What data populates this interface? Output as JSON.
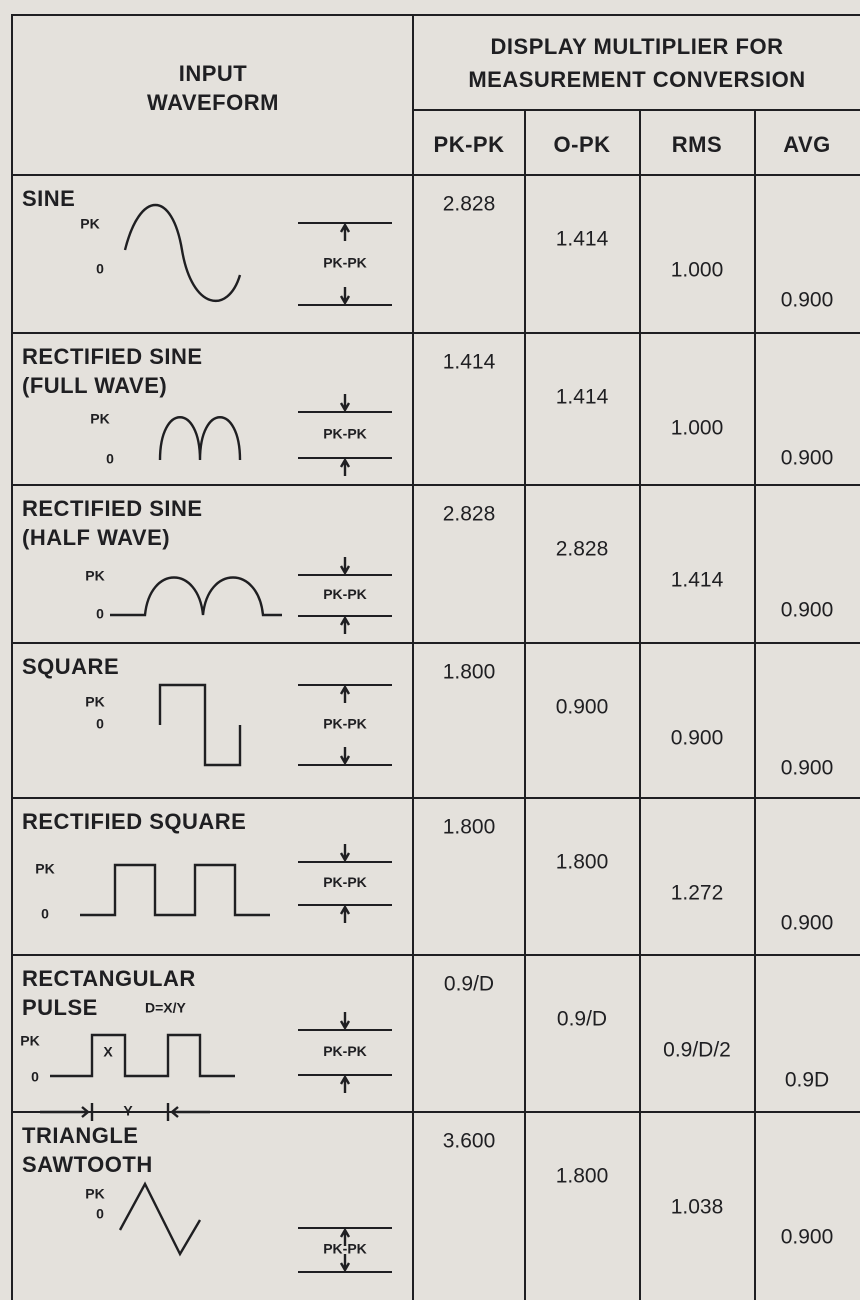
{
  "header": {
    "input_waveform": [
      "INPUT",
      "WAVEFORM"
    ],
    "multiplier": [
      "DISPLAY MULTIPLIER FOR",
      "MEASUREMENT CONVERSION"
    ],
    "columns": [
      "PK-PK",
      "O-PK",
      "RMS",
      "AVG"
    ]
  },
  "rows": [
    {
      "name": [
        "SINE"
      ],
      "pk": "PK",
      "zero": "0",
      "pkpk": "PK-PK",
      "values": [
        "2.828",
        "1.414",
        "1.000",
        "0.900"
      ]
    },
    {
      "name": [
        "RECTIFIED SINE",
        "(FULL WAVE)"
      ],
      "pk": "PK",
      "zero": "0",
      "pkpk": "PK-PK",
      "values": [
        "1.414",
        "1.414",
        "1.000",
        "0.900"
      ]
    },
    {
      "name": [
        "RECTIFIED SINE",
        "(HALF WAVE)"
      ],
      "pk": "PK",
      "zero": "0",
      "pkpk": "PK-PK",
      "values": [
        "2.828",
        "2.828",
        "1.414",
        "0.900"
      ]
    },
    {
      "name": [
        "SQUARE"
      ],
      "pk": "PK",
      "zero": "0",
      "pkpk": "PK-PK",
      "values": [
        "1.800",
        "0.900",
        "0.900",
        "0.900"
      ]
    },
    {
      "name": [
        "RECTIFIED SQUARE"
      ],
      "pk": "PK",
      "zero": "0",
      "pkpk": "PK-PK",
      "values": [
        "1.800",
        "1.800",
        "1.272",
        "0.900"
      ]
    },
    {
      "name": [
        "RECTANGULAR",
        "PULSE"
      ],
      "formula": "D=X/Y",
      "x_label": "X",
      "y_label": "Y",
      "pk": "PK",
      "zero": "0",
      "pkpk": "PK-PK",
      "values": [
        "0.9/D",
        "0.9/D",
        "0.9/D/2",
        "0.9D"
      ]
    },
    {
      "name": [
        "TRIANGLE",
        "SAWTOOTH"
      ],
      "pk": "PK",
      "zero": "0",
      "pkpk": "PK-PK",
      "values": [
        "3.600",
        "1.800",
        "1.038",
        "0.900"
      ]
    }
  ]
}
